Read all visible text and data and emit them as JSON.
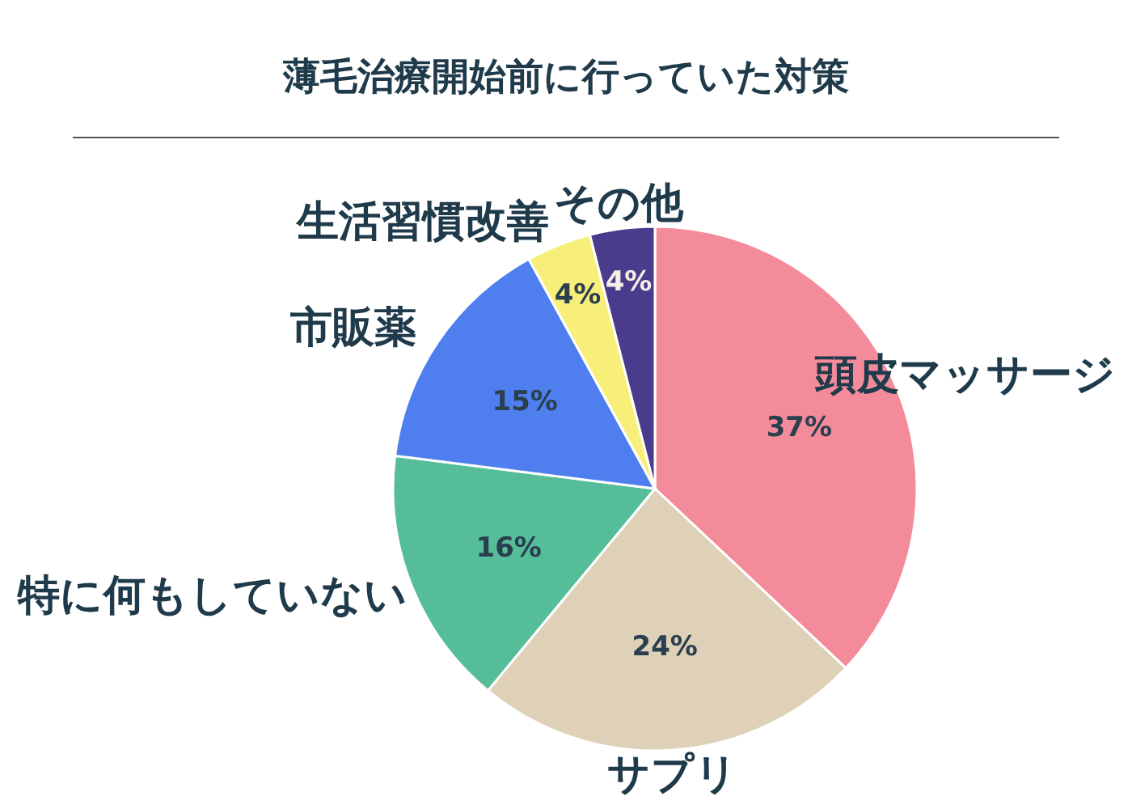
{
  "chart_data": {
    "type": "pie",
    "title": "薄毛治療開始前に行っていた対策",
    "categories": [
      "頭皮マッサージ",
      "サプリ",
      "特に何もしていない",
      "市販薬",
      "生活習慣改善",
      "その他"
    ],
    "values": [
      37,
      24,
      16,
      15,
      4,
      4
    ],
    "colors": [
      "#f48b9b",
      "#dfd1b7",
      "#55bd98",
      "#4f7fef",
      "#f7ef7a",
      "#4b3b8c"
    ],
    "value_labels": [
      "37%",
      "24%",
      "16%",
      "15%",
      "4%",
      "4%"
    ]
  }
}
